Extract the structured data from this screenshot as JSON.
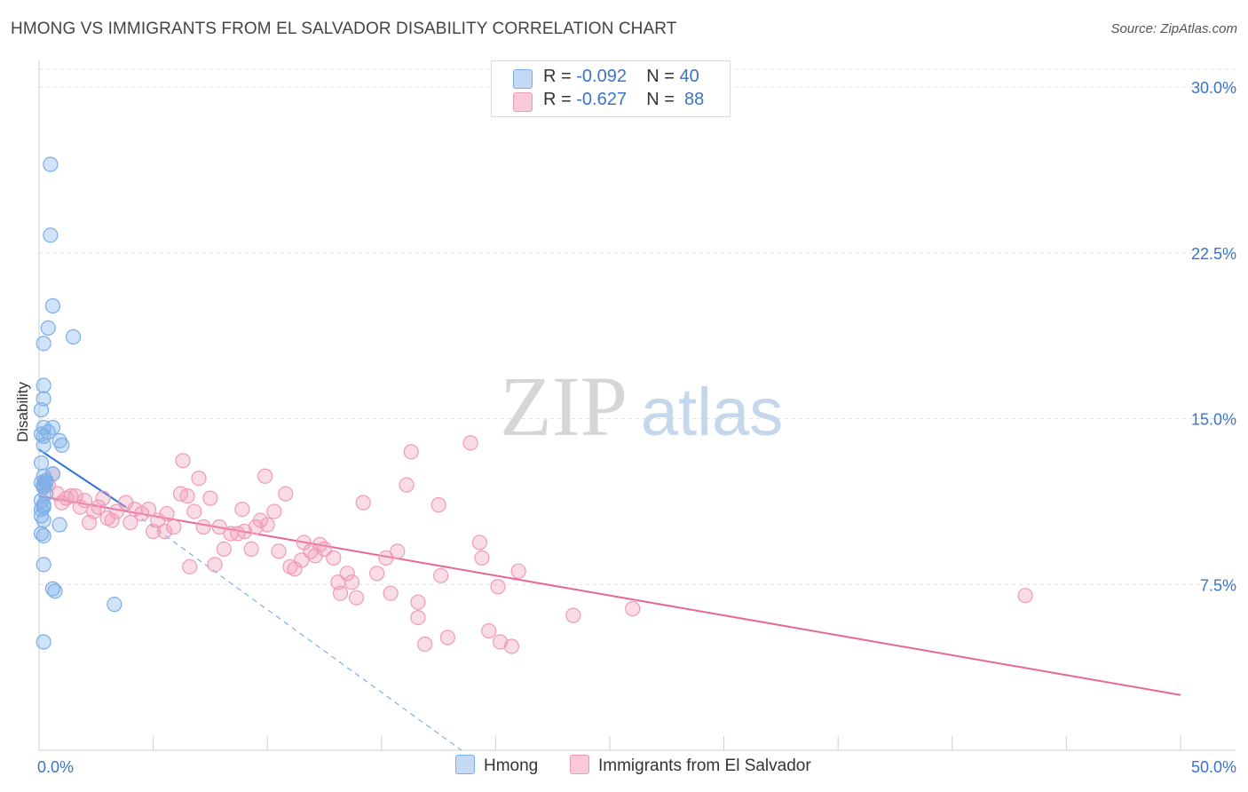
{
  "title": "HMONG VS IMMIGRANTS FROM EL SALVADOR DISABILITY CORRELATION CHART",
  "source": "Source: ZipAtlas.com",
  "watermark": {
    "zip": "ZIP",
    "atlas": "atlas"
  },
  "legend": {
    "series1": {
      "r_label": "R = ",
      "r_value": "-0.092",
      "n_label": "N = ",
      "n_value": "40"
    },
    "series2": {
      "r_label": "R = ",
      "r_value": "-0.627",
      "n_label": "N = ",
      "n_value": "88"
    }
  },
  "chart_data": {
    "type": "scatter",
    "title": "HMONG VS IMMIGRANTS FROM EL SALVADOR DISABILITY CORRELATION CHART",
    "xlabel": "",
    "ylabel": "Disability",
    "xlim": [
      0,
      50
    ],
    "ylim": [
      0,
      31
    ],
    "x_tick_labels": [
      {
        "value": 0,
        "label": "0.0%"
      },
      {
        "value": 50,
        "label": "50.0%"
      }
    ],
    "y_tick_labels": [
      {
        "value": 7.5,
        "label": "7.5%"
      },
      {
        "value": 15,
        "label": "15.0%"
      },
      {
        "value": 22.5,
        "label": "22.5%"
      },
      {
        "value": 30,
        "label": "30.0%"
      }
    ],
    "grid": true,
    "series": [
      {
        "name": "Hmong",
        "color": "#7aaee8",
        "fill": "rgba(122,174,232,0.35)",
        "line_color": "#2d74d4",
        "trend": {
          "x0": 0,
          "y0": 13.6,
          "x1": 3.8,
          "y1": 11.0,
          "dash_to_x": 18.5,
          "dash_to_y": 0.0
        },
        "points": [
          [
            0.5,
            26.5
          ],
          [
            0.5,
            23.3
          ],
          [
            0.6,
            20.1
          ],
          [
            0.4,
            19.1
          ],
          [
            1.5,
            18.7
          ],
          [
            0.2,
            18.4
          ],
          [
            0.2,
            16.5
          ],
          [
            0.2,
            15.9
          ],
          [
            0.1,
            15.4
          ],
          [
            0.6,
            14.6
          ],
          [
            0.2,
            14.6
          ],
          [
            0.4,
            14.4
          ],
          [
            0.1,
            14.3
          ],
          [
            0.2,
            14.2
          ],
          [
            0.9,
            14.0
          ],
          [
            0.2,
            13.8
          ],
          [
            1.0,
            13.8
          ],
          [
            0.6,
            12.5
          ],
          [
            0.2,
            12.4
          ],
          [
            0.3,
            12.2
          ],
          [
            0.2,
            12.0
          ],
          [
            0.1,
            12.1
          ],
          [
            0.2,
            11.9
          ],
          [
            0.3,
            11.6
          ],
          [
            0.1,
            11.3
          ],
          [
            0.2,
            11.1
          ],
          [
            0.1,
            10.9
          ],
          [
            0.1,
            10.6
          ],
          [
            0.2,
            10.4
          ],
          [
            0.9,
            10.2
          ],
          [
            0.1,
            9.8
          ],
          [
            0.2,
            9.7
          ],
          [
            0.2,
            8.4
          ],
          [
            0.6,
            7.3
          ],
          [
            0.7,
            7.2
          ],
          [
            3.3,
            6.6
          ],
          [
            0.2,
            4.9
          ],
          [
            0.3,
            12.1
          ],
          [
            0.2,
            11.0
          ],
          [
            0.1,
            13.0
          ]
        ]
      },
      {
        "name": "Immigrants from El Salvador",
        "color": "#f09ab8",
        "fill": "rgba(240,154,184,0.35)",
        "line_color": "#e8679a",
        "trend": {
          "x0": 0,
          "y0": 11.5,
          "x1": 50,
          "y1": 2.5
        },
        "points": [
          [
            0.2,
            11.9
          ],
          [
            0.4,
            12.0
          ],
          [
            0.6,
            12.5
          ],
          [
            0.8,
            11.6
          ],
          [
            1.0,
            11.2
          ],
          [
            1.2,
            11.4
          ],
          [
            1.4,
            11.5
          ],
          [
            1.6,
            11.5
          ],
          [
            1.8,
            11.0
          ],
          [
            2.0,
            11.3
          ],
          [
            2.2,
            10.3
          ],
          [
            2.4,
            10.8
          ],
          [
            2.6,
            11.0
          ],
          [
            2.8,
            11.4
          ],
          [
            3.0,
            10.5
          ],
          [
            3.2,
            10.4
          ],
          [
            3.4,
            10.8
          ],
          [
            3.8,
            11.2
          ],
          [
            4.0,
            10.3
          ],
          [
            4.2,
            10.9
          ],
          [
            4.5,
            10.7
          ],
          [
            4.8,
            10.9
          ],
          [
            5.0,
            9.9
          ],
          [
            5.2,
            10.4
          ],
          [
            5.5,
            9.9
          ],
          [
            5.6,
            10.7
          ],
          [
            5.9,
            10.1
          ],
          [
            6.2,
            11.6
          ],
          [
            6.3,
            13.1
          ],
          [
            6.5,
            11.5
          ],
          [
            6.6,
            8.3
          ],
          [
            6.8,
            10.8
          ],
          [
            7.0,
            12.3
          ],
          [
            7.2,
            10.1
          ],
          [
            7.5,
            11.4
          ],
          [
            7.7,
            8.4
          ],
          [
            7.9,
            10.1
          ],
          [
            8.1,
            9.1
          ],
          [
            8.4,
            9.8
          ],
          [
            8.7,
            9.8
          ],
          [
            8.9,
            10.9
          ],
          [
            9.0,
            9.9
          ],
          [
            9.3,
            9.1
          ],
          [
            9.5,
            10.1
          ],
          [
            9.7,
            10.4
          ],
          [
            9.9,
            12.4
          ],
          [
            10.0,
            10.2
          ],
          [
            10.3,
            10.8
          ],
          [
            10.5,
            9.0
          ],
          [
            10.8,
            11.6
          ],
          [
            11.0,
            8.3
          ],
          [
            11.2,
            8.2
          ],
          [
            11.5,
            8.6
          ],
          [
            11.6,
            9.4
          ],
          [
            11.9,
            9.0
          ],
          [
            12.1,
            8.8
          ],
          [
            12.3,
            9.3
          ],
          [
            12.5,
            9.1
          ],
          [
            12.9,
            8.7
          ],
          [
            13.1,
            7.6
          ],
          [
            13.2,
            7.1
          ],
          [
            13.5,
            8.0
          ],
          [
            13.7,
            7.6
          ],
          [
            13.9,
            6.9
          ],
          [
            14.2,
            11.2
          ],
          [
            14.8,
            8.0
          ],
          [
            15.2,
            8.7
          ],
          [
            15.4,
            7.1
          ],
          [
            15.7,
            9.0
          ],
          [
            16.1,
            12.0
          ],
          [
            16.3,
            13.5
          ],
          [
            16.6,
            6.7
          ],
          [
            16.6,
            6.0
          ],
          [
            16.9,
            4.8
          ],
          [
            17.5,
            11.1
          ],
          [
            17.6,
            7.9
          ],
          [
            17.9,
            5.1
          ],
          [
            18.9,
            13.9
          ],
          [
            19.3,
            9.4
          ],
          [
            19.4,
            8.7
          ],
          [
            19.7,
            5.4
          ],
          [
            20.1,
            7.4
          ],
          [
            20.2,
            4.9
          ],
          [
            20.7,
            4.7
          ],
          [
            21.0,
            8.1
          ],
          [
            23.4,
            6.1
          ],
          [
            26.0,
            6.4
          ],
          [
            43.2,
            7.0
          ]
        ]
      }
    ]
  }
}
